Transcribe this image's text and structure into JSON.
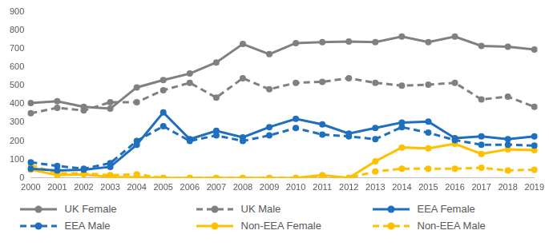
{
  "chart_data": {
    "type": "line",
    "categories": [
      "2000",
      "2001",
      "2002",
      "2003",
      "2004",
      "2005",
      "2006",
      "2007",
      "2008",
      "2009",
      "2010",
      "2011",
      "2012",
      "2013",
      "2014",
      "2015",
      "2016",
      "2017",
      "2018",
      "2019"
    ],
    "series": [
      {
        "name": "UK Female",
        "color": "#808080",
        "line_style": "solid",
        "marker": "circle",
        "values": [
          405,
          415,
          385,
          375,
          490,
          530,
          565,
          625,
          725,
          670,
          730,
          735,
          738,
          735,
          765,
          735,
          765,
          715,
          710,
          695
        ]
      },
      {
        "name": "UK Male",
        "color": "#808080",
        "line_style": "dashed",
        "marker": "circle",
        "values": [
          350,
          380,
          365,
          410,
          410,
          475,
          515,
          435,
          540,
          480,
          515,
          520,
          540,
          515,
          500,
          505,
          515,
          425,
          440,
          385
        ]
      },
      {
        "name": "EEA Female",
        "color": "#1f6fbf",
        "line_style": "solid",
        "marker": "circle",
        "values": [
          50,
          40,
          45,
          60,
          180,
          355,
          210,
          255,
          220,
          275,
          320,
          290,
          240,
          270,
          300,
          305,
          215,
          225,
          210,
          225
        ]
      },
      {
        "name": "EEA Male",
        "color": "#1f6fbf",
        "line_style": "dashed",
        "marker": "circle",
        "values": [
          85,
          65,
          50,
          80,
          200,
          280,
          200,
          230,
          200,
          230,
          270,
          235,
          225,
          210,
          275,
          245,
          205,
          180,
          180,
          175
        ]
      },
      {
        "name": "Non-EEA Female",
        "color": "#ffc000",
        "line_style": "solid",
        "marker": "circle",
        "values": [
          45,
          15,
          20,
          5,
          5,
          0,
          0,
          0,
          0,
          0,
          0,
          15,
          0,
          90,
          165,
          160,
          185,
          130,
          155,
          150
        ]
      },
      {
        "name": "Non-EEA Male",
        "color": "#ffc000",
        "line_style": "dashed",
        "marker": "circle",
        "values": [
          70,
          25,
          25,
          15,
          20,
          0,
          0,
          0,
          0,
          0,
          0,
          10,
          0,
          35,
          50,
          50,
          50,
          55,
          40,
          45
        ]
      }
    ],
    "ylim": [
      0,
      900
    ],
    "yticks": [
      0,
      100,
      200,
      300,
      400,
      500,
      600,
      700,
      800,
      900
    ],
    "grid": false,
    "legend": "bottom"
  }
}
